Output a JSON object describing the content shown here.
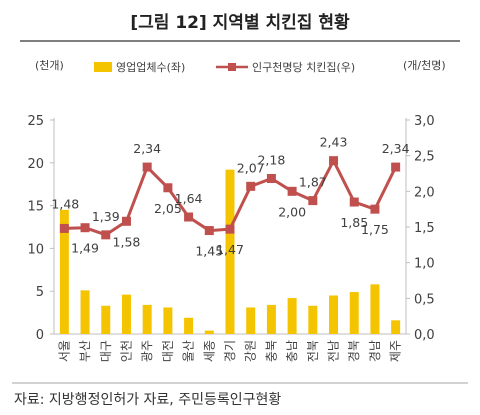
{
  "chart_data": {
    "type": "bar+line",
    "title": "[그림 12] 지역별 치킨집 현황",
    "left_unit": "(천개)",
    "right_unit": "(개/천명)",
    "source": "자료: 지방행정인허가 자료, 주민등록인구현황",
    "categories": [
      "서울",
      "부산",
      "대구",
      "인천",
      "광주",
      "대전",
      "울산",
      "세종",
      "경기",
      "강원",
      "충북",
      "충남",
      "전북",
      "전남",
      "경북",
      "경남",
      "제주"
    ],
    "series": [
      {
        "name": "영업업체수(좌)",
        "axis": "left",
        "type": "bar",
        "color": "#F5C400",
        "values": [
          14.5,
          5.1,
          3.3,
          4.6,
          3.4,
          3.1,
          1.9,
          0.4,
          19.2,
          3.1,
          3.4,
          4.2,
          3.3,
          4.5,
          4.9,
          5.8,
          1.6
        ]
      },
      {
        "name": "인구천명당 치킨집(우)",
        "axis": "right",
        "type": "line",
        "color": "#C0504D",
        "values": [
          1.48,
          1.49,
          1.39,
          1.58,
          2.34,
          2.05,
          1.64,
          1.45,
          1.47,
          2.07,
          2.18,
          2.0,
          1.87,
          2.43,
          1.85,
          1.75,
          2.34
        ],
        "labels": [
          "1,48",
          "1,49",
          "1,39",
          "1,58",
          "2,34",
          "2,05",
          "1,64",
          "1,45",
          "1,47",
          "2,07",
          "2,18",
          "2,00",
          "1,87",
          "2,43",
          "1,85",
          "1,75",
          "2,34"
        ]
      }
    ],
    "left_axis": {
      "min": 0,
      "max": 25,
      "ticks": [
        "0",
        "5",
        "10",
        "15",
        "20",
        "25"
      ]
    },
    "right_axis": {
      "min": 0,
      "max": 3.0,
      "ticks": [
        "0,0",
        "0,5",
        "1,0",
        "1,5",
        "2,0",
        "2,5",
        "3,0"
      ]
    },
    "grid": false,
    "legend": "top"
  }
}
